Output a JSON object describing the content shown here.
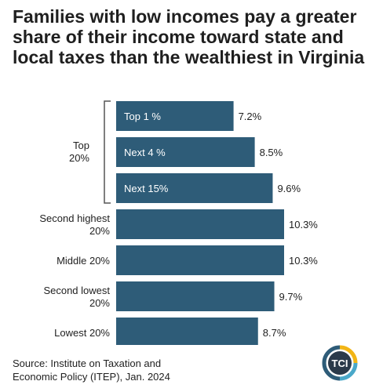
{
  "chart_data": {
    "type": "bar",
    "orientation": "horizontal",
    "title": "Families with low incomes pay a greater share of their income toward state and local taxes than the wealthiest in Virginia",
    "group_label": "Top 20%",
    "categories": [
      "Top 1 %",
      "Next 4 %",
      "Next 15%",
      "Second highest 20%",
      "Middle 20%",
      "Second lowest 20%",
      "Lowest 20%"
    ],
    "values": [
      7.2,
      8.5,
      9.6,
      10.3,
      10.3,
      9.7,
      8.7
    ],
    "value_labels": [
      "7.2%",
      "8.5%",
      "9.6%",
      "10.3%",
      "10.3%",
      "9.7%",
      "8.7%"
    ],
    "bar_color": "#2e5c78",
    "xlim": [
      0,
      10.3
    ],
    "grid": false,
    "legend": "none"
  },
  "source": {
    "line1": "Source: Institute on Taxation and",
    "line2": "Economic Policy (ITEP), Jan. 2024"
  },
  "logo": {
    "text": "TCI",
    "colors": [
      "#f2b516",
      "#4aa8c9",
      "#2e5c78"
    ]
  }
}
